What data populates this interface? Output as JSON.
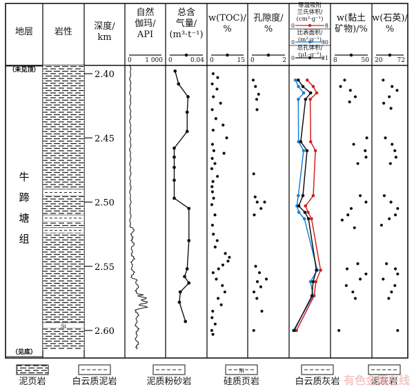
{
  "chart_data": {
    "type": "well-log",
    "formation": {
      "label": "牛蹄塘组",
      "top_note": "（未见顶）",
      "bottom_note": "（见底）"
    },
    "depth": {
      "header": "深度/\nkm",
      "ticks": [
        2.4,
        2.45,
        2.5,
        2.55,
        2.6
      ],
      "range": [
        2.392,
        2.615
      ]
    },
    "columns": [
      {
        "key": "strat",
        "header": "地层"
      },
      {
        "key": "lith",
        "header": "岩性"
      },
      {
        "key": "depth",
        "header": "深度/\nkm"
      },
      {
        "key": "gr",
        "header": "自然\n伽玛/\nAPI",
        "scale": [
          0,
          1000
        ],
        "scale_labels": [
          "0",
          "1 000"
        ]
      },
      {
        "key": "gas",
        "header": "总含\n气量/\n(m³·t⁻¹)",
        "scale": [
          0,
          0.04
        ],
        "scale_labels": [
          "0",
          "0.04"
        ]
      },
      {
        "key": "toc",
        "header": "w(TOC)/\n%",
        "scale": [
          0,
          15
        ],
        "scale_labels": [
          "0",
          "15"
        ]
      },
      {
        "key": "por",
        "header": "孔隙度/\n%",
        "scale": [
          0,
          2
        ],
        "scale_labels": [
          "0",
          "2"
        ]
      },
      {
        "key": "pore",
        "header": "",
        "scale_labels": []
      },
      {
        "key": "clay",
        "header": "w(黏土\n矿物)/%",
        "scale": [
          8,
          50
        ],
        "scale_labels": [
          "8",
          "50"
        ]
      },
      {
        "key": "qtz",
        "header": "w(石英)/\n%",
        "scale": [
          20,
          72
        ],
        "scale_labels": [
          "20",
          "72"
        ]
      }
    ],
    "pore_headers": [
      {
        "text": "等温吸附\n兰氏体积/\n(cm³·g⁻¹)",
        "scale": [
          0,
          8
        ],
        "scale_labels": [
          "0",
          "8"
        ],
        "color": "#d42020"
      },
      {
        "text": "比表面积/\n(m²·g⁻¹)",
        "scale": [
          0,
          30
        ],
        "scale_labels": [
          "0",
          "30"
        ],
        "color": "#1a7fd6"
      },
      {
        "text": "总孔体积/\n(μL·g⁻¹)",
        "scale": [
          0,
          21
        ],
        "scale_labels": [
          "0",
          "21"
        ],
        "color": "#111111"
      }
    ],
    "gas": [
      [
        2.398,
        0.007
      ],
      [
        2.408,
        0.011
      ],
      [
        2.418,
        0.022
      ],
      [
        2.43,
        0.021
      ],
      [
        2.445,
        0.021
      ],
      [
        2.458,
        0.006
      ],
      [
        2.465,
        0.006
      ],
      [
        2.473,
        0.006
      ],
      [
        2.483,
        0.006
      ],
      [
        2.497,
        0.006
      ],
      [
        2.505,
        0.023
      ],
      [
        2.53,
        0.023
      ],
      [
        2.552,
        0.021
      ],
      [
        2.558,
        0.018
      ],
      [
        2.563,
        0.023
      ],
      [
        2.57,
        0.013
      ],
      [
        2.578,
        0.012
      ],
      [
        2.593,
        0.019
      ]
    ],
    "langmuir": [
      [
        2.405,
        3.4
      ],
      [
        2.41,
        4.8
      ],
      [
        2.415,
        5.6
      ],
      [
        2.42,
        4.1
      ],
      [
        2.453,
        4.2
      ],
      [
        2.46,
        5.3
      ],
      [
        2.495,
        4.8
      ],
      [
        2.503,
        3.0
      ],
      [
        2.508,
        3.6
      ],
      [
        2.513,
        4.4
      ],
      [
        2.553,
        6.5
      ],
      [
        2.562,
        5.4
      ],
      [
        2.573,
        5.0
      ],
      [
        2.6,
        0.9
      ]
    ],
    "surface": [
      [
        2.405,
        2.5
      ],
      [
        2.41,
        5.1
      ],
      [
        2.415,
        9.7
      ],
      [
        2.42,
        5.0
      ],
      [
        2.453,
        5.2
      ],
      [
        2.46,
        9.6
      ],
      [
        2.495,
        5.0
      ],
      [
        2.503,
        3.8
      ],
      [
        2.508,
        5.5
      ],
      [
        2.513,
        10.3
      ],
      [
        2.553,
        21.5
      ],
      [
        2.562,
        15.6
      ],
      [
        2.573,
        17.8
      ],
      [
        2.6,
        0.8
      ]
    ],
    "porevol": [
      [
        2.405,
        3.5
      ],
      [
        2.41,
        6.3
      ],
      [
        2.415,
        11.0
      ],
      [
        2.42,
        7.9
      ],
      [
        2.453,
        5.0
      ],
      [
        2.46,
        8.8
      ],
      [
        2.495,
        6.3
      ],
      [
        2.503,
        3.8
      ],
      [
        2.508,
        7.5
      ],
      [
        2.513,
        9.7
      ],
      [
        2.553,
        14.5
      ],
      [
        2.562,
        12.5
      ],
      [
        2.573,
        11.8
      ],
      [
        2.6,
        1.0
      ]
    ],
    "toc": [
      [
        2.4,
        1.2
      ],
      [
        2.403,
        3.2
      ],
      [
        2.408,
        0.8
      ],
      [
        2.412,
        2.9
      ],
      [
        2.418,
        1.3
      ],
      [
        2.423,
        4.5
      ],
      [
        2.428,
        0.8
      ],
      [
        2.435,
        2.4
      ],
      [
        2.44,
        5.6
      ],
      [
        2.444,
        1.2
      ],
      [
        2.45,
        7.2
      ],
      [
        2.455,
        0.9
      ],
      [
        2.46,
        1.5
      ],
      [
        2.462,
        6.0
      ],
      [
        2.466,
        0.8
      ],
      [
        2.47,
        2.0
      ],
      [
        2.474,
        0.6
      ],
      [
        2.48,
        3.1
      ],
      [
        2.484,
        1.1
      ],
      [
        2.488,
        0.7
      ],
      [
        2.492,
        0.9
      ],
      [
        2.497,
        1.4
      ],
      [
        2.502,
        0.6
      ],
      [
        2.51,
        2.0
      ],
      [
        2.518,
        0.9
      ],
      [
        2.525,
        1.3
      ],
      [
        2.53,
        3.0
      ],
      [
        2.535,
        2.1
      ],
      [
        2.54,
        6.6
      ],
      [
        2.543,
        8.4
      ],
      [
        2.546,
        7.8
      ],
      [
        2.549,
        5.5
      ],
      [
        2.552,
        3.6
      ],
      [
        2.555,
        1.2
      ],
      [
        2.56,
        2.6
      ],
      [
        2.565,
        5.3
      ],
      [
        2.57,
        6.4
      ],
      [
        2.575,
        3.4
      ],
      [
        2.58,
        4.8
      ],
      [
        2.585,
        1.0
      ],
      [
        2.59,
        0.7
      ],
      [
        2.595,
        2.1
      ],
      [
        2.6,
        0.6
      ],
      [
        2.603,
        1.1
      ]
    ],
    "por": [
      [
        2.405,
        0.12
      ],
      [
        2.41,
        0.25
      ],
      [
        2.416,
        0.43
      ],
      [
        2.42,
        0.32
      ],
      [
        2.428,
        0.34
      ],
      [
        2.478,
        0.15
      ],
      [
        2.496,
        0.23
      ],
      [
        2.5,
        0.35
      ],
      [
        2.505,
        0.57
      ],
      [
        2.51,
        0.18
      ],
      [
        2.5,
        0.78
      ],
      [
        2.55,
        0.26
      ],
      [
        2.555,
        0.48
      ],
      [
        2.56,
        0.88
      ],
      [
        2.562,
        0.36
      ],
      [
        2.566,
        0.56
      ],
      [
        2.57,
        0.16
      ],
      [
        2.575,
        0.33
      ],
      [
        2.585,
        0.62
      ],
      [
        2.6,
        0.15
      ]
    ],
    "clay": [
      [
        2.405,
        21
      ],
      [
        2.41,
        16
      ],
      [
        2.413,
        28
      ],
      [
        2.418,
        34
      ],
      [
        2.422,
        27
      ],
      [
        2.45,
        48
      ],
      [
        2.455,
        32
      ],
      [
        2.46,
        46
      ],
      [
        2.465,
        47
      ],
      [
        2.47,
        37
      ],
      [
        2.495,
        40
      ],
      [
        2.5,
        47
      ],
      [
        2.505,
        29
      ],
      [
        2.51,
        25
      ],
      [
        2.514,
        18
      ],
      [
        2.52,
        33
      ],
      [
        2.548,
        37
      ],
      [
        2.552,
        24
      ],
      [
        2.556,
        47
      ],
      [
        2.56,
        40
      ],
      [
        2.565,
        23
      ],
      [
        2.57,
        31
      ],
      [
        2.575,
        34
      ],
      [
        2.6,
        14
      ]
    ],
    "qtz": [
      [
        2.405,
        34
      ],
      [
        2.41,
        50
      ],
      [
        2.413,
        59
      ],
      [
        2.418,
        45
      ],
      [
        2.423,
        35
      ],
      [
        2.427,
        48
      ],
      [
        2.45,
        38
      ],
      [
        2.455,
        50
      ],
      [
        2.46,
        55
      ],
      [
        2.465,
        57
      ],
      [
        2.47,
        47
      ],
      [
        2.495,
        36
      ],
      [
        2.5,
        48
      ],
      [
        2.505,
        60
      ],
      [
        2.51,
        56
      ],
      [
        2.513,
        45
      ],
      [
        2.518,
        31
      ],
      [
        2.548,
        40
      ],
      [
        2.552,
        56
      ],
      [
        2.556,
        60
      ],
      [
        2.56,
        34
      ],
      [
        2.565,
        55
      ],
      [
        2.57,
        49
      ],
      [
        2.575,
        44
      ],
      [
        2.6,
        60
      ]
    ],
    "lith_bands": [
      [
        2.392,
        2.49,
        "mudstone"
      ],
      [
        2.49,
        2.495,
        "dolomitic"
      ],
      [
        2.495,
        2.51,
        "mudstone"
      ],
      [
        2.51,
        2.515,
        "silty"
      ],
      [
        2.515,
        2.52,
        "mudstone"
      ],
      [
        2.52,
        2.524,
        "dolomitic"
      ],
      [
        2.524,
        2.594,
        "mudstone"
      ],
      [
        2.594,
        2.598,
        "siliceous"
      ],
      [
        2.598,
        2.615,
        "mudstone"
      ]
    ]
  },
  "lith_labels": {
    "siliceous": "Si"
  },
  "legend": [
    {
      "pattern": "mudstone",
      "label": "泥页岩"
    },
    {
      "pattern": "dolomitic",
      "label": "白云质泥岩"
    },
    {
      "pattern": "silty",
      "label": "泥质粉砂岩"
    },
    {
      "pattern": "siliceous",
      "label": "硅质页岩",
      "mark": "Si"
    },
    {
      "pattern": "dolo_lime",
      "label": "白云质灰岩"
    },
    {
      "pattern": "muddy_lime",
      "label": "泥灰岩"
    }
  ],
  "watermark": "有色金属在线",
  "colors": {
    "red": "#d42020",
    "blue": "#1a7fd6",
    "black": "#111111"
  }
}
